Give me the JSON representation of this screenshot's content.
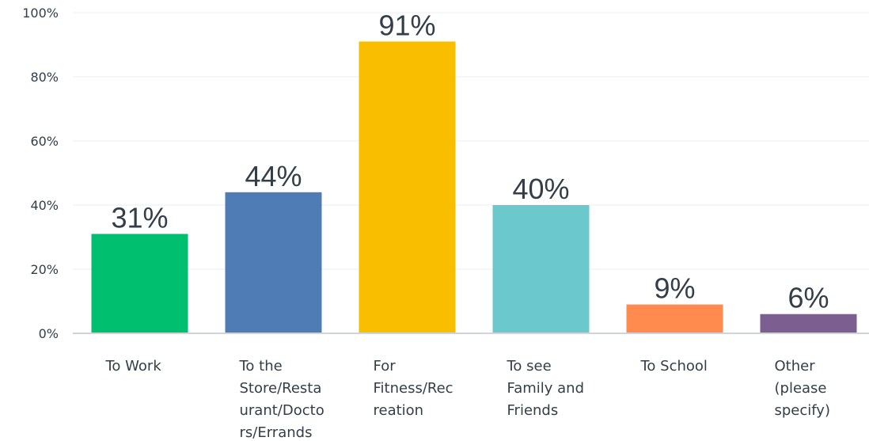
{
  "chart_data": {
    "type": "bar",
    "title": "",
    "xlabel": "",
    "ylabel": "",
    "ylim": [
      0,
      100
    ],
    "yticks": [
      "0%",
      "20%",
      "40%",
      "60%",
      "80%",
      "100%"
    ],
    "grid": true,
    "categories": [
      [
        "To Work"
      ],
      [
        "To the",
        "Store/Resta",
        "urant/Docto",
        "rs/Errands"
      ],
      [
        "For",
        "Fitness/Rec",
        "reation"
      ],
      [
        "To see",
        "Family and",
        "Friends"
      ],
      [
        "To School"
      ],
      [
        "Other",
        "(please",
        "specify)"
      ]
    ],
    "values": [
      31,
      44,
      91,
      40,
      9,
      6
    ],
    "data_labels": [
      "31%",
      "44%",
      "91%",
      "40%",
      "9%",
      "6%"
    ],
    "colors": [
      "#00bf6f",
      "#507cb6",
      "#f9be00",
      "#6bc8cd",
      "#ff8b4f",
      "#7d5e90"
    ]
  }
}
